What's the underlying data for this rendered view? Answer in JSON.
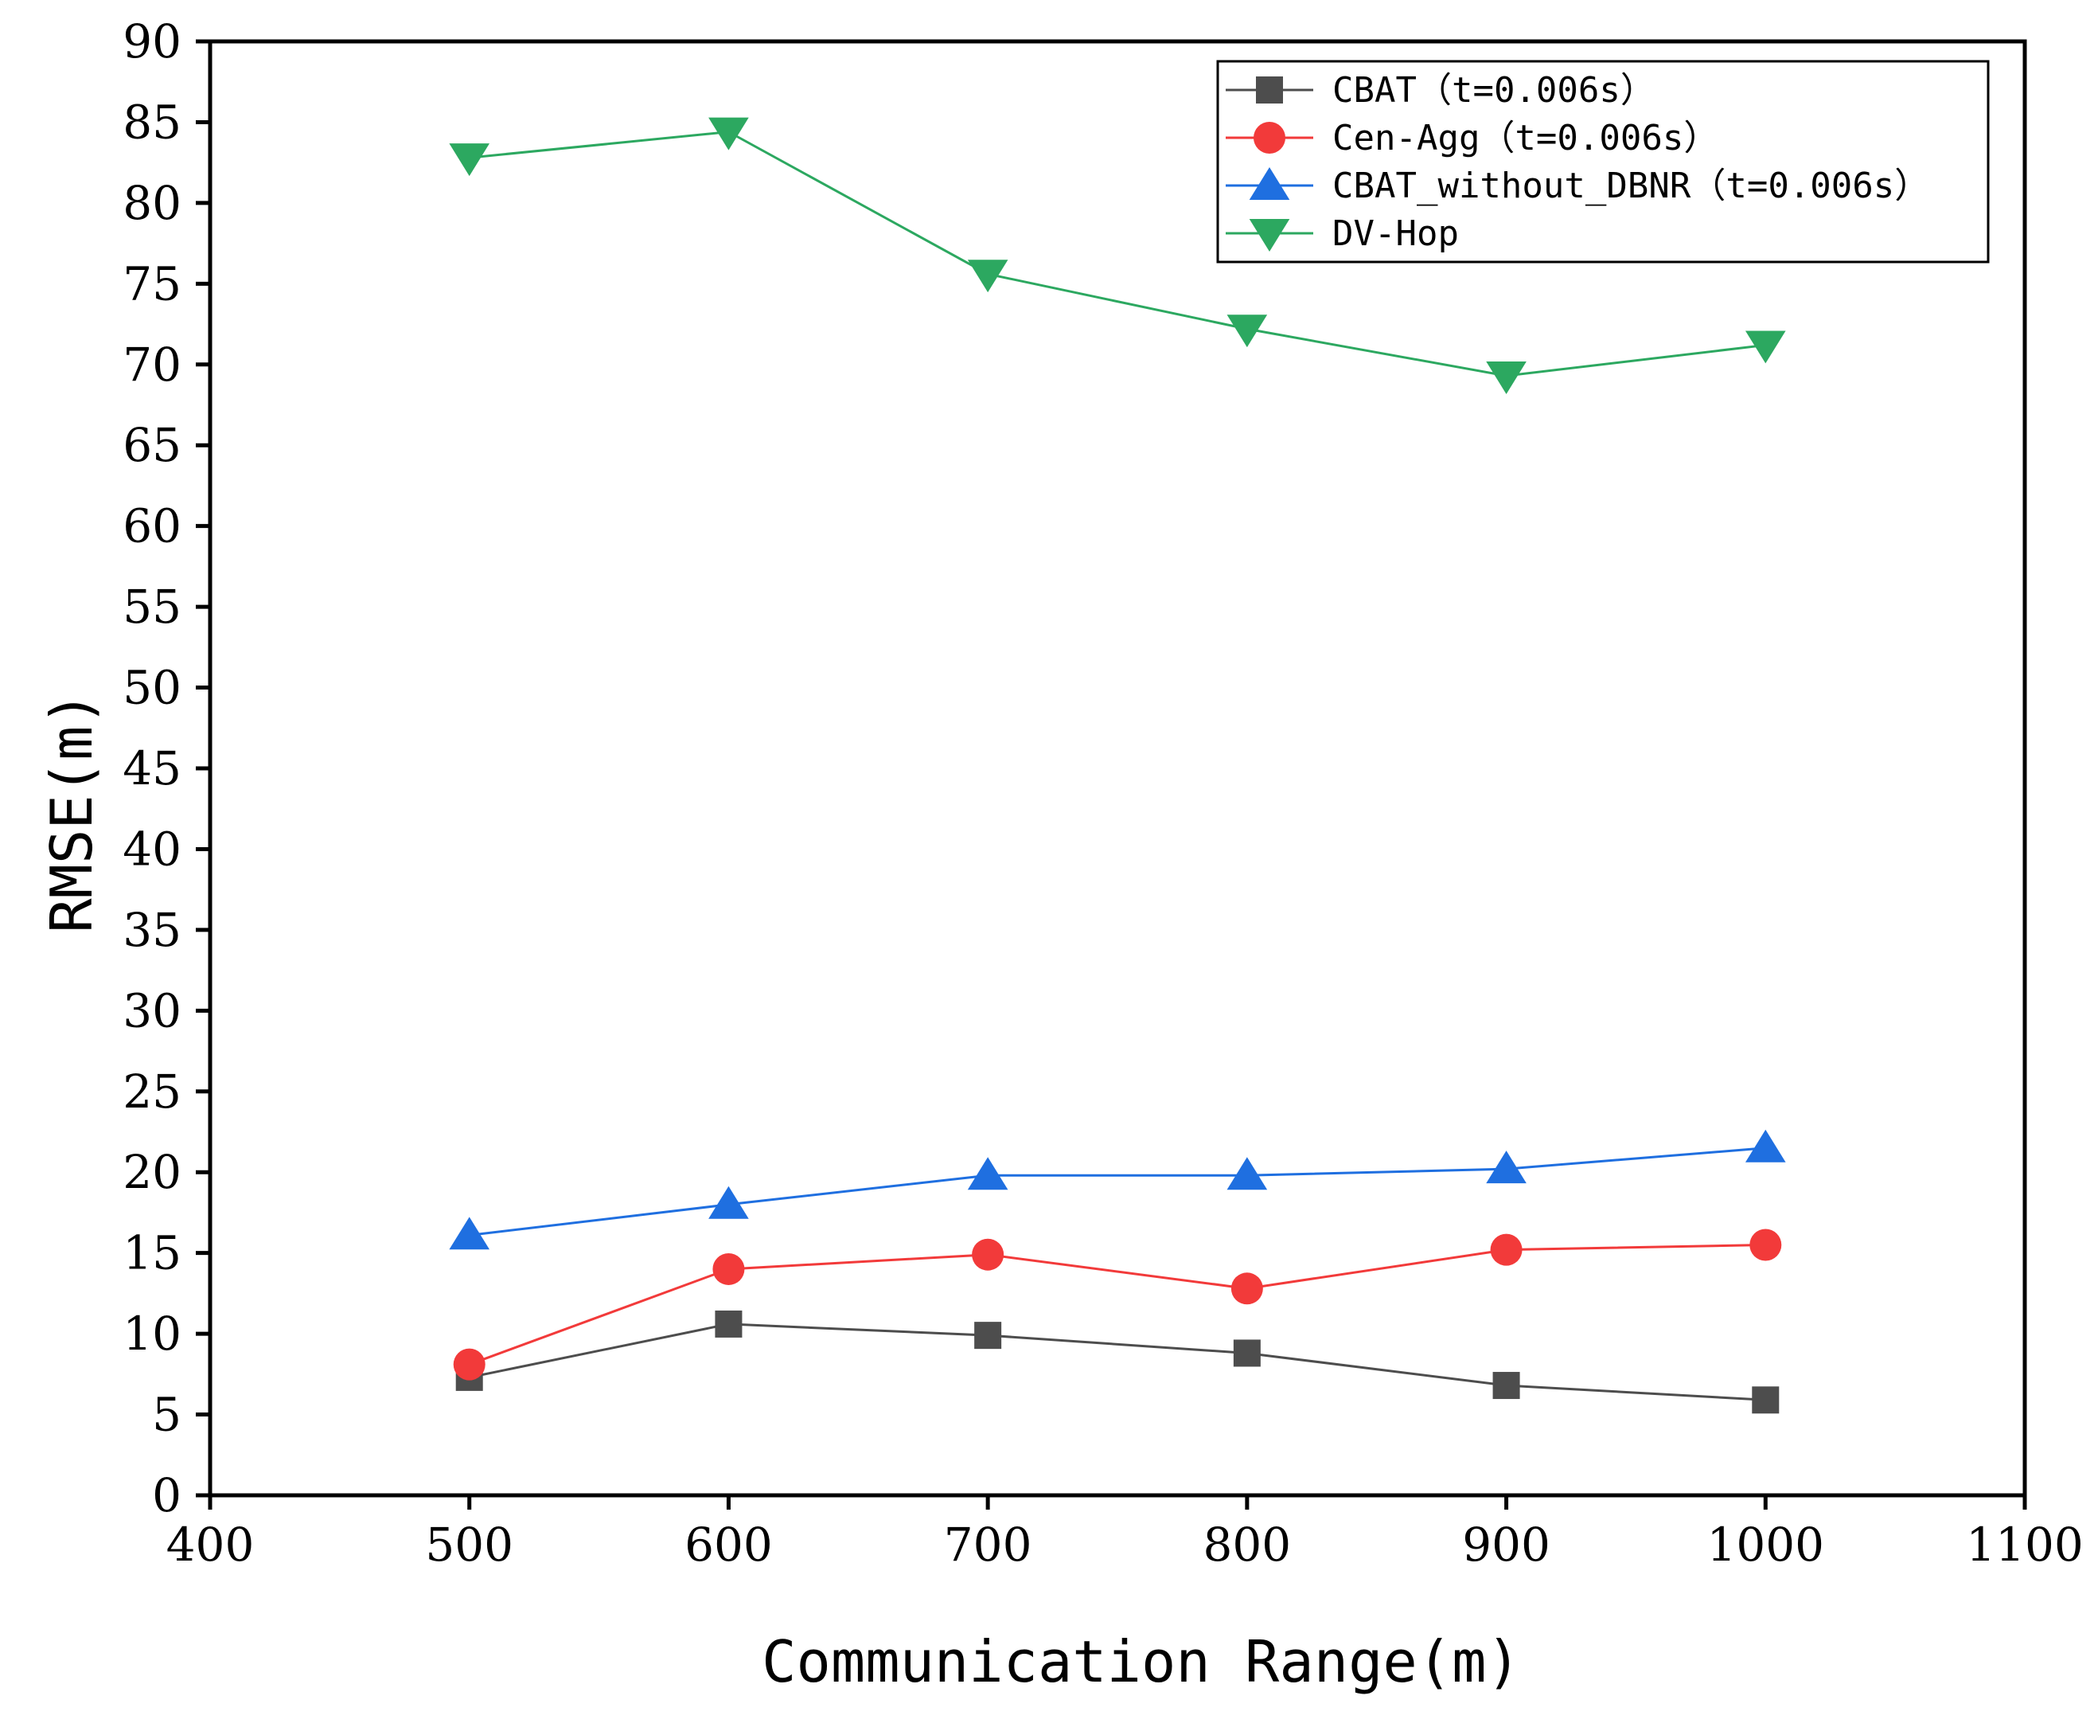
{
  "chart_data": {
    "type": "line",
    "xlabel": "Communication Range(m)",
    "ylabel": "RMSE(m)",
    "xlim": [
      400,
      1100
    ],
    "ylim": [
      0,
      90
    ],
    "xticks": [
      400,
      500,
      600,
      700,
      800,
      900,
      1000,
      1100
    ],
    "yticks": [
      0,
      5,
      10,
      15,
      20,
      25,
      30,
      35,
      40,
      45,
      50,
      55,
      60,
      65,
      70,
      75,
      80,
      85,
      90
    ],
    "x": [
      500,
      600,
      700,
      800,
      900,
      1000
    ],
    "legend_position": "top-right",
    "series": [
      {
        "name": "CBAT（t=0.006s）",
        "marker": "square",
        "color": "#4d4d4d",
        "values": [
          7.3,
          10.6,
          9.9,
          8.8,
          6.8,
          5.9
        ]
      },
      {
        "name": "Cen-Agg（t=0.006s）",
        "marker": "circle",
        "color": "#f23a3a",
        "values": [
          8.1,
          14.0,
          14.9,
          12.8,
          15.2,
          15.5
        ]
      },
      {
        "name": "CBAT_without_DBNR（t=0.006s）",
        "marker": "triangle-up",
        "color": "#1f6fe0",
        "values": [
          16.1,
          18.0,
          19.8,
          19.8,
          20.2,
          21.5
        ]
      },
      {
        "name": "DV-Hop",
        "marker": "triangle-down",
        "color": "#2ca860",
        "values": [
          82.8,
          84.4,
          75.6,
          72.2,
          69.3,
          71.2
        ]
      }
    ]
  }
}
